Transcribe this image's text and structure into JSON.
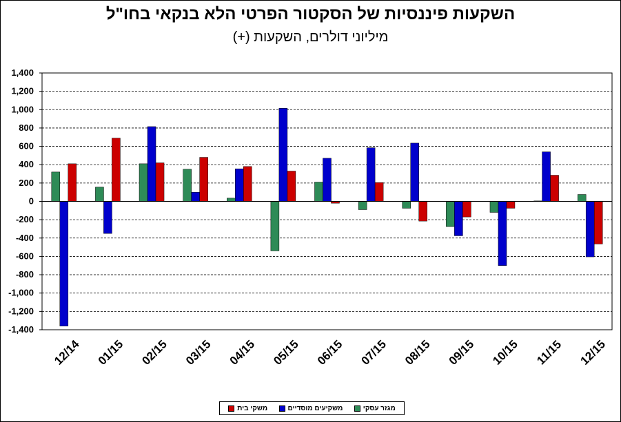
{
  "chart_data": {
    "type": "bar",
    "title": "השקעות פיננסיות של הסקטור הפרטי הלא בנקאי בחו\"ל",
    "subtitle": "מיליוני דולרים, השקעות (+)",
    "categories": [
      "12/14",
      "01/15",
      "02/15",
      "03/15",
      "04/15",
      "05/15",
      "06/15",
      "07/15",
      "08/15",
      "09/15",
      "10/15",
      "11/15",
      "12/15"
    ],
    "series": [
      {
        "name": "מגזר עסקי",
        "color": "#2e8b57",
        "values": [
          320,
          155,
          410,
          350,
          35,
          -540,
          210,
          -90,
          -75,
          -275,
          -120,
          5,
          75
        ]
      },
      {
        "name": "משקיעים מוסדיים",
        "color": "#0000cc",
        "values": [
          -1360,
          -350,
          815,
          100,
          355,
          1015,
          470,
          585,
          635,
          -375,
          -700,
          540,
          -605
        ]
      },
      {
        "name": "משקי בית",
        "color": "#cc0000",
        "values": [
          410,
          690,
          420,
          480,
          380,
          330,
          -20,
          205,
          -215,
          -170,
          -75,
          285,
          -465
        ]
      }
    ],
    "ylim": [
      -1400,
      1400
    ],
    "ytick_step": 200,
    "ytick_labels": [
      "1,400",
      "1,200",
      "1,000",
      "800",
      "600",
      "400",
      "200",
      "0",
      "-200",
      "-400",
      "-600",
      "-800",
      "-1,000",
      "-1,200",
      "-1,400"
    ],
    "grid": true,
    "legend_position": "bottom-center"
  }
}
